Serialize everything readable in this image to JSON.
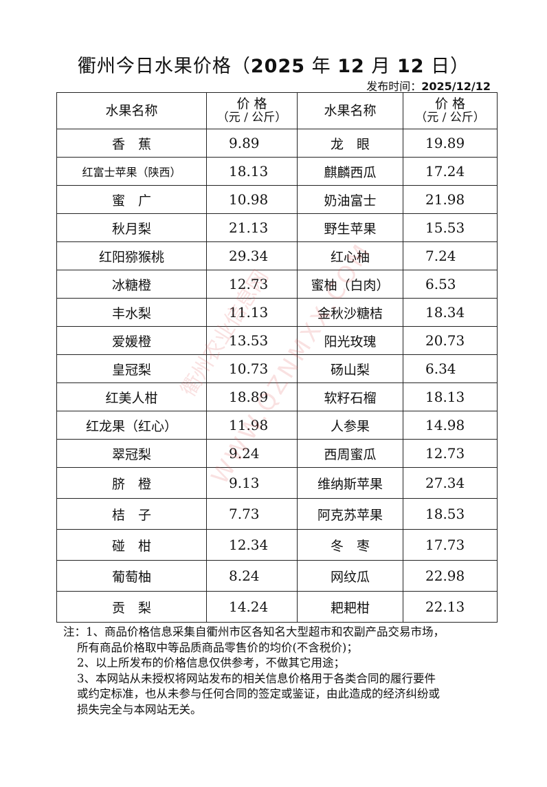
{
  "title": {
    "prefix": "衢州今日水果价格（",
    "year": "2025",
    "y": " 年 ",
    "month": "12",
    "m": " 月 ",
    "day": "12",
    "d": " 日）"
  },
  "publish": {
    "label": "发布时间：",
    "value": "2025/12/12"
  },
  "headers": {
    "name": "水果名称",
    "price": "价  格",
    "unit": "（元 / 公斤）"
  },
  "rows": [
    {
      "n1": "香　蕉",
      "p1": "9.89",
      "n2": "龙　眼",
      "p2": "19.89"
    },
    {
      "n1": "红富士苹果（陕西）",
      "p1": "18.13",
      "n2": "麒麟西瓜",
      "p2": "17.24"
    },
    {
      "n1": "蜜　广",
      "p1": "10.98",
      "n2": "奶油富士",
      "p2": "21.98"
    },
    {
      "n1": "秋月梨",
      "p1": "21.13",
      "n2": "野生苹果",
      "p2": "15.53"
    },
    {
      "n1": "红阳猕猴桃",
      "p1": "29.34",
      "n2": "红心柚",
      "p2": "7.24"
    },
    {
      "n1": "冰糖橙",
      "p1": "12.73",
      "n2": "蜜柚（白肉）",
      "p2": "6.53"
    },
    {
      "n1": "丰水梨",
      "p1": "11.13",
      "n2": "金秋沙糖桔",
      "p2": "18.34"
    },
    {
      "n1": "爱媛橙",
      "p1": "13.53",
      "n2": "阳光玫瑰",
      "p2": "20.73"
    },
    {
      "n1": "皇冠梨",
      "p1": "10.73",
      "n2": "砀山梨",
      "p2": "6.34"
    },
    {
      "n1": "红美人柑",
      "p1": "18.89",
      "n2": "软籽石榴",
      "p2": "18.13"
    },
    {
      "n1": "红龙果（红心）",
      "p1": "11.98",
      "n2": "人参果",
      "p2": "14.98"
    },
    {
      "n1": "翠冠梨",
      "p1": "9.24",
      "n2": "西周蜜瓜",
      "p2": "12.73"
    },
    {
      "n1": "脐　橙",
      "p1": "9.13",
      "n2": "维纳斯苹果",
      "p2": "27.34"
    },
    {
      "n1": "桔　子",
      "p1": "7.73",
      "n2": "阿克苏苹果",
      "p2": "18.53"
    },
    {
      "n1": "碰　柑",
      "p1": "12.34",
      "n2": "冬　枣",
      "p2": "17.73"
    },
    {
      "n1": "葡萄柚",
      "p1": "8.24",
      "n2": "网纹瓜",
      "p2": "22.98"
    },
    {
      "n1": "贡　梨",
      "p1": "14.24",
      "n2": "耙耙柑",
      "p2": "22.13"
    }
  ],
  "notes": [
    "注：1、商品价格信息采集自衢州市区各知名大型超市和农副产品交易市场，",
    "所有商品价格取中等品质商品零售价的均价(不含税价)；",
    "2、以上所发布的价格信息仅供参考，不做其它用途；",
    "3、本网站从未授权将网站发布的相关信息价格用于各类合同的履行要件",
    "或约定标准，也从未参与任何合同的签定或鉴证，由此造成的经济纠纷或",
    "损失完全与本网站无关。"
  ],
  "watermark": {
    "line1": "衢州农业信息网",
    "line2": "WWW.QZNMXX.COM"
  }
}
